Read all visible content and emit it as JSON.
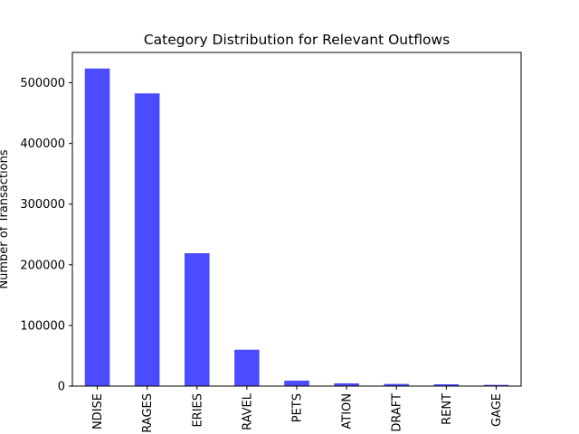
{
  "chart_data": {
    "type": "bar",
    "title": "Category Distribution for Relevant Outflows",
    "xlabel": "",
    "ylabel": "Number of Transactions",
    "categories": [
      "NDISE",
      "RAGES",
      "ERIES",
      "RAVEL",
      "PETS",
      "ATION",
      "DRAFT",
      "RENT",
      "GAGE"
    ],
    "values": [
      523500,
      482500,
      219000,
      60000,
      9000,
      4500,
      3500,
      3000,
      2000
    ],
    "ylim": [
      0,
      550000
    ],
    "yticks": [
      0,
      100000,
      200000,
      300000,
      400000,
      500000
    ],
    "bar_color": "#4b4bff",
    "grid": false,
    "legend": "none"
  }
}
